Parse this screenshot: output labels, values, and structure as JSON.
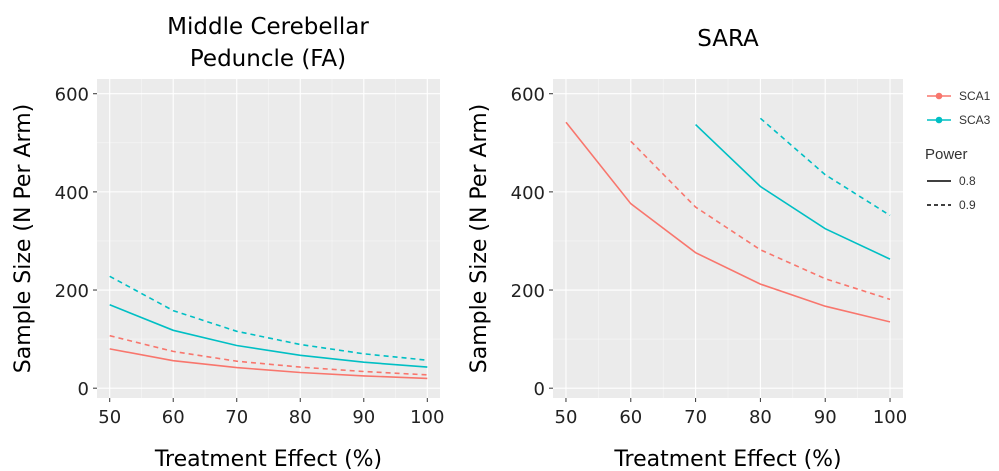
{
  "chart_data": [
    {
      "type": "line",
      "title": "Middle Cerebellar Peduncle (FA)",
      "title_lines": [
        "Middle Cerebellar",
        "Peduncle (FA)"
      ],
      "xlabel": "Treatment Effect (%)",
      "ylabel": "Sample Size (N Per Arm)",
      "xlim": [
        48,
        102
      ],
      "ylim": [
        -20,
        630
      ],
      "x_ticks": [
        50,
        60,
        70,
        80,
        90,
        100
      ],
      "y_ticks": [
        0,
        200,
        400,
        600
      ],
      "grid": true,
      "series": [
        {
          "group": "SCA1",
          "power": "0.8",
          "color": "#F8766D",
          "linetype": "solid",
          "x": [
            50,
            60,
            70,
            80,
            90,
            100
          ],
          "values": [
            80,
            56,
            42,
            32,
            25,
            20
          ]
        },
        {
          "group": "SCA1",
          "power": "0.9",
          "color": "#F8766D",
          "linetype": "dashed",
          "x": [
            50,
            60,
            70,
            80,
            90,
            100
          ],
          "values": [
            107,
            75,
            55,
            43,
            34,
            27
          ]
        },
        {
          "group": "SCA3",
          "power": "0.8",
          "color": "#00BFC4",
          "linetype": "solid",
          "x": [
            50,
            60,
            70,
            80,
            90,
            100
          ],
          "values": [
            170,
            118,
            87,
            67,
            53,
            43
          ]
        },
        {
          "group": "SCA3",
          "power": "0.9",
          "color": "#00BFC4",
          "linetype": "dashed",
          "x": [
            50,
            60,
            70,
            80,
            90,
            100
          ],
          "values": [
            228,
            158,
            116,
            89,
            70,
            57
          ]
        }
      ]
    },
    {
      "type": "line",
      "title": "SARA",
      "title_lines": [
        "SARA"
      ],
      "xlabel": "Treatment Effect (%)",
      "ylabel": "Sample Size (N Per Arm)",
      "xlim": [
        48,
        102
      ],
      "ylim": [
        -20,
        630
      ],
      "x_ticks": [
        50,
        60,
        70,
        80,
        90,
        100
      ],
      "y_ticks": [
        0,
        200,
        400,
        600
      ],
      "grid": true,
      "series": [
        {
          "group": "SCA1",
          "power": "0.8",
          "color": "#F8766D",
          "linetype": "solid",
          "x": [
            50,
            60,
            70,
            80,
            90,
            100
          ],
          "values": [
            542,
            376,
            276,
            212,
            167,
            135
          ]
        },
        {
          "group": "SCA1",
          "power": "0.9",
          "color": "#F8766D",
          "linetype": "dashed",
          "x": [
            60,
            70,
            80,
            90,
            100
          ],
          "values": [
            503,
            369,
            282,
            223,
            181
          ]
        },
        {
          "group": "SCA3",
          "power": "0.8",
          "color": "#00BFC4",
          "linetype": "solid",
          "x": [
            70,
            80,
            90,
            100
          ],
          "values": [
            537,
            411,
            325,
            263
          ]
        },
        {
          "group": "SCA3",
          "power": "0.9",
          "color": "#00BFC4",
          "linetype": "dashed",
          "x": [
            80,
            90,
            100
          ],
          "values": [
            550,
            435,
            352
          ]
        }
      ]
    }
  ],
  "legend": {
    "placement": "right",
    "group_items": [
      {
        "label": "SCA1",
        "color": "#F8766D"
      },
      {
        "label": "SCA3",
        "color": "#00BFC4"
      }
    ],
    "power_title": "Power",
    "power_items": [
      {
        "label": "0.8",
        "linetype": "solid"
      },
      {
        "label": "0.9",
        "linetype": "dashed"
      }
    ]
  },
  "colors": {
    "panel_bg": "#EBEBEB",
    "grid": "#FFFFFF",
    "text": "#000000"
  }
}
